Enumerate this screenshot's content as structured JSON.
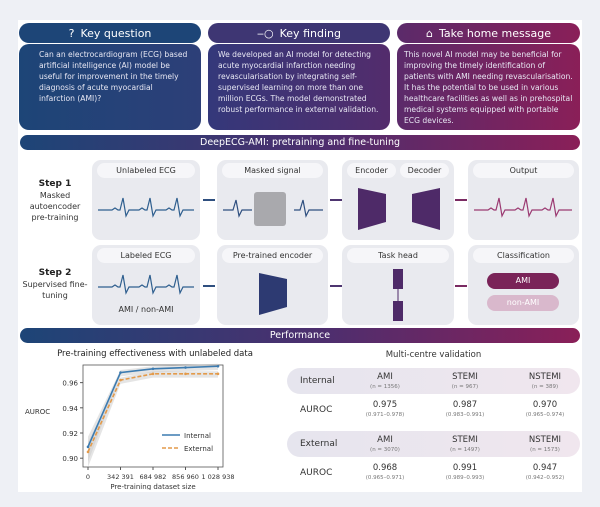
{
  "colors": {
    "navy": "#1d4577",
    "purple": "#4e2e6e",
    "magenta": "#8a1f58"
  },
  "panels": [
    {
      "title": "Key question",
      "icon": "question-icon",
      "text": "Can an electrocardiogram (ECG) based artificial intelligence (AI) model be useful for improvement in the timely diagnosis of acute myocardial infarction (AMI)?"
    },
    {
      "title": "Key finding",
      "icon": "key-icon",
      "text": "We developed an AI model for detecting acute myocardial infarction needing revascularisation by integrating self-supervised learning on more than one million ECGs. The model demonstrated robust performance in external validation."
    },
    {
      "title": "Take home message",
      "icon": "home-icon",
      "text": "This novel AI model may be beneficial for improving the timely identification of patients with AMI needing revascularisation. It has the potential to be used in various healthcare facilities as well as in prehospital medical systems equipped with portable ECG devices."
    }
  ],
  "method": {
    "title": "DeepECG-AMI: pretraining and fine-tuning",
    "step1": {
      "label": "Step 1",
      "desc": "Masked autoencoder pre-training",
      "boxes": [
        "Unlabeled ECG",
        "Masked signal",
        "Encoder",
        "Decoder",
        "Output"
      ]
    },
    "step2": {
      "label": "Step 2",
      "desc": "Supervised fine-tuning",
      "boxes": [
        "Labeled ECG",
        "Pre-trained encoder",
        "Task head",
        "Classification"
      ],
      "ecg_caption": "AMI / non-AMI",
      "classes": [
        "AMI",
        "non-AMI"
      ]
    }
  },
  "performance": {
    "title": "Performance",
    "table_title": "Multi-centre validation",
    "rows": [
      {
        "group": "Internal",
        "metric": "AUROC",
        "cols": [
          {
            "name": "AMI",
            "n": "(n = 1356)",
            "value": "0.975",
            "ci": "(0.971–0.978)"
          },
          {
            "name": "STEMI",
            "n": "(n = 967)",
            "value": "0.987",
            "ci": "(0.983–0.991)"
          },
          {
            "name": "NSTEMI",
            "n": "(n = 389)",
            "value": "0.970",
            "ci": "(0.965–0.974)"
          }
        ]
      },
      {
        "group": "External",
        "metric": "AUROC",
        "cols": [
          {
            "name": "AMI",
            "n": "(n = 3070)",
            "value": "0.968",
            "ci": "(0.965–0.971)"
          },
          {
            "name": "STEMI",
            "n": "(n = 1497)",
            "value": "0.991",
            "ci": "(0.989–0.993)"
          },
          {
            "name": "NSTEMI",
            "n": "(n = 1573)",
            "value": "0.947",
            "ci": "(0.942–0.952)"
          }
        ]
      }
    ]
  },
  "chart_data": {
    "type": "line",
    "title": "Pre-training effectiveness with unlabeled data",
    "xlabel": "Pre-training dataset size",
    "ylabel": "AUROC",
    "categories": [
      "0",
      "342 391",
      "684 982",
      "856 960",
      "1 028 938"
    ],
    "yticks": [
      "0.90",
      "0.92",
      "0.94",
      "0.96"
    ],
    "ylim": [
      0.893,
      0.974
    ],
    "legend": "bottom-right",
    "grid": false,
    "series": [
      {
        "name": "Internal",
        "color": "#3c7bb0",
        "style": "solid",
        "values": [
          0.909,
          0.968,
          0.971,
          0.972,
          0.973
        ]
      },
      {
        "name": "External",
        "color": "#e39a4a",
        "style": "dashed",
        "values": [
          0.905,
          0.962,
          0.967,
          0.967,
          0.967
        ]
      }
    ]
  }
}
